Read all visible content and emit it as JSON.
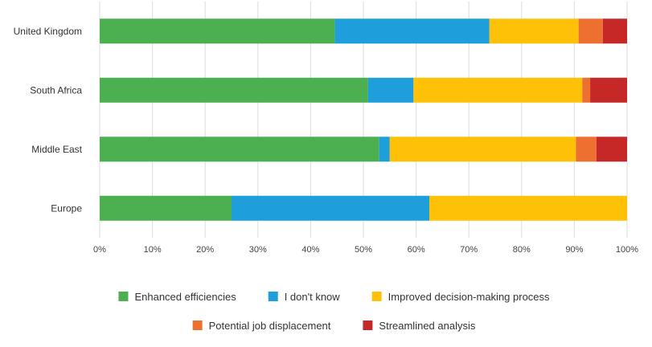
{
  "chart_data": {
    "type": "bar",
    "orientation": "horizontal",
    "stacked": true,
    "title": "",
    "xlabel": "",
    "ylabel": "",
    "xlim": [
      0,
      100
    ],
    "x_ticks": [
      "0%",
      "10%",
      "20%",
      "30%",
      "40%",
      "50%",
      "60%",
      "70%",
      "80%",
      "90%",
      "100%"
    ],
    "grid": "vertical",
    "legend_position": "bottom",
    "categories": [
      "United Kingdom",
      "South Africa",
      "Middle East",
      "Europe"
    ],
    "series": [
      {
        "name": "Enhanced efficiencies",
        "color": "#4CAF50",
        "values": [
          44.6,
          50.9,
          53.0,
          25.0
        ]
      },
      {
        "name": "I don't know",
        "color": "#1E9FDB",
        "values": [
          29.3,
          8.6,
          2.0,
          37.5
        ]
      },
      {
        "name": "Improved decision-making process",
        "color": "#FFC107",
        "values": [
          16.9,
          32.0,
          35.3,
          37.5
        ]
      },
      {
        "name": "Potential job displacement",
        "color": "#EE7031",
        "values": [
          4.6,
          1.5,
          3.9,
          0
        ]
      },
      {
        "name": "Streamlined analysis",
        "color": "#C62828",
        "values": [
          4.6,
          7.0,
          5.8,
          0
        ]
      }
    ]
  }
}
